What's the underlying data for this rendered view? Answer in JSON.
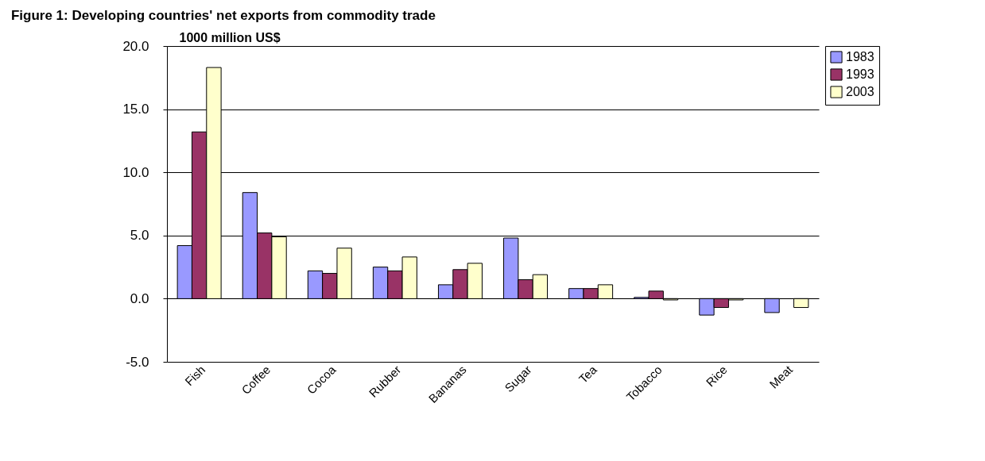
{
  "chart_data": {
    "type": "bar",
    "title": "Figure 1: Developing countries' net exports from commodity trade",
    "ylabel": "1000 million US$",
    "categories": [
      "Fish",
      "Coffee",
      "Cocoa",
      "Rubber",
      "Bananas",
      "Sugar",
      "Tea",
      "Tobacco",
      "Rice",
      "Meat"
    ],
    "series": [
      {
        "name": "1983",
        "color": "#9999ff",
        "values": [
          4.2,
          8.4,
          2.2,
          2.5,
          1.1,
          4.8,
          0.8,
          0.1,
          -1.3,
          -1.1
        ]
      },
      {
        "name": "1993",
        "color": "#993366",
        "values": [
          13.2,
          5.2,
          2.0,
          2.2,
          2.3,
          1.5,
          0.8,
          0.6,
          -0.7,
          null
        ]
      },
      {
        "name": "2003",
        "color": "#ffffcc",
        "values": [
          18.3,
          4.9,
          4.0,
          3.3,
          2.8,
          1.9,
          1.1,
          -0.1,
          -0.1,
          -0.7
        ]
      }
    ],
    "ylim": [
      -5,
      20
    ],
    "yticks": [
      {
        "value": -5,
        "label": "-5.0"
      },
      {
        "value": 0,
        "label": "0.0"
      },
      {
        "value": 5,
        "label": "5.0"
      },
      {
        "value": 10,
        "label": "10.0"
      },
      {
        "value": 15,
        "label": "15.0"
      },
      {
        "value": 20,
        "label": "20.0"
      }
    ],
    "grid": "y",
    "legend": "right"
  }
}
